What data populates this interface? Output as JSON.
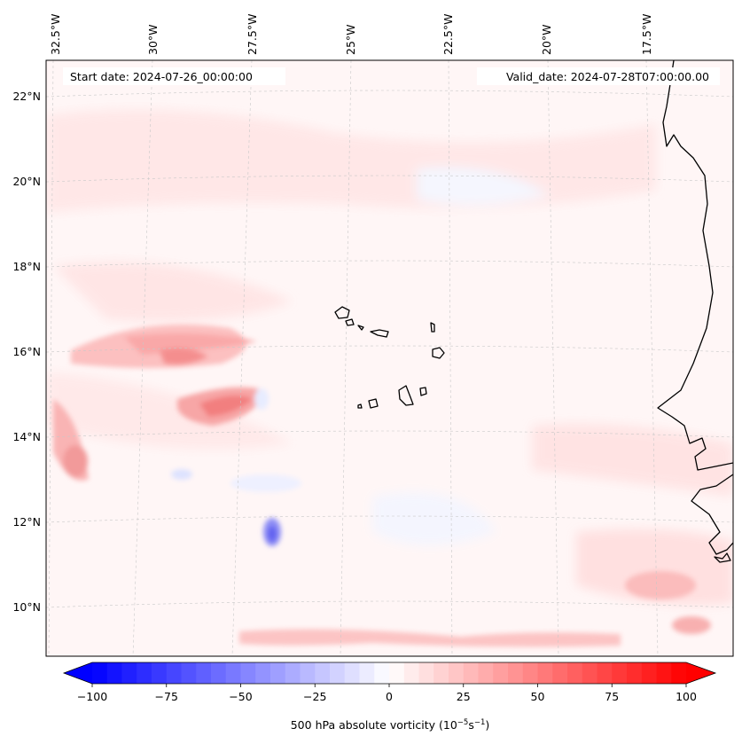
{
  "header": {
    "start_date": "Start date: 2024-07-26_00:00:00",
    "valid_date": "Valid_date: 2024-07-28T07:00:00.00"
  },
  "map": {
    "lon_labels": [
      "32.5°W",
      "30°W",
      "27.5°W",
      "25°W",
      "22.5°W",
      "20°W",
      "17.5°W"
    ],
    "lat_labels": [
      "22°N",
      "20°N",
      "18°N",
      "16°N",
      "14°N",
      "12°N",
      "10°N"
    ],
    "field": "500 hPa absolute vorticity",
    "gridlines": true
  },
  "colorbar": {
    "label_prefix": "500 hPa absolute vorticity (10",
    "label_exp1": "−5",
    "label_mid": "s",
    "label_exp2": "−1",
    "label_suffix": ")",
    "ticks": [
      "−100",
      "−75",
      "−50",
      "−25",
      "0",
      "25",
      "50",
      "75",
      "100"
    ],
    "range": [
      -100,
      100
    ],
    "colormap": "bwr",
    "extend": "both",
    "low_color": "#0000ff",
    "mid_color": "#ffffff",
    "high_color": "#ff0000"
  }
}
